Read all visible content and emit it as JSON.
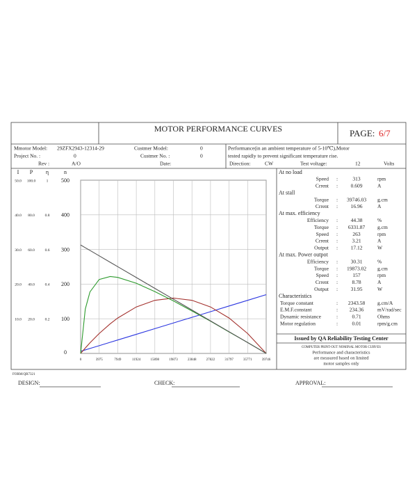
{
  "header": {
    "title": "MOTOR PERFORMANCE CURVES",
    "page_label": "PAGE:",
    "page_value": "6/7"
  },
  "info": {
    "model_label": "Mmotor Model:",
    "model": "29ZFX2943-12314-29",
    "customer_model_label": "Custmer Model:",
    "customer_model": "0",
    "project_label": "Project No. :",
    "project": "0",
    "customer_no_label": "Custmer No. :",
    "customer_no": "0",
    "rev_label": "Rev :",
    "rev": "A/O",
    "date_label": "Date:",
    "note_lines": [
      "Performance(in an ambient temperature of 5-10℃),Motor",
      "tested rapidly to prevent significant temperature rise."
    ],
    "direction_label": "Direction:",
    "direction": "CW",
    "voltage_label": "Test voltage:",
    "voltage": "12",
    "voltage_unit": "Volts"
  },
  "chart_data": {
    "type": "line",
    "x": [
      0,
      1000,
      2000,
      3975,
      6332,
      7949,
      11924,
      15898,
      19873,
      23848,
      27822,
      31797,
      35771,
      39746
    ],
    "xlim": [
      0,
      39746
    ],
    "xticks": [
      0,
      3975,
      7949,
      11924,
      15898,
      19873,
      23848,
      27822,
      31797,
      35771,
      39746
    ],
    "grid": true,
    "y_axes": [
      {
        "label": "I",
        "lim": [
          0,
          50
        ],
        "ticks": [
          {
            "value": 10,
            "label": "10.0"
          },
          {
            "value": 20,
            "label": "20.0"
          },
          {
            "value": 30,
            "label": "30.0"
          },
          {
            "value": 40,
            "label": "40.0"
          },
          {
            "value": 50,
            "label": "50.0"
          }
        ]
      },
      {
        "label": "P",
        "lim": [
          0,
          100
        ],
        "ticks": [
          {
            "value": 20,
            "label": "20.0"
          },
          {
            "value": 40,
            "label": "40.0"
          },
          {
            "value": 60,
            "label": "60.0"
          },
          {
            "value": 80,
            "label": "80.0"
          },
          {
            "value": 100,
            "label": "100.0"
          }
        ]
      },
      {
        "label": "η",
        "lim": [
          0,
          1
        ],
        "ticks": [
          0.2,
          0.4,
          0.6,
          0.8,
          1
        ]
      },
      {
        "label": "n",
        "lim": [
          0,
          500
        ],
        "ticks": [
          0,
          100,
          200,
          300,
          400,
          500
        ]
      }
    ],
    "series": [
      {
        "axis": 0,
        "color": "#2a35e0",
        "values": [
          0.61,
          1.02,
          1.43,
          2.24,
          3.21,
          3.88,
          5.51,
          7.15,
          8.79,
          10.42,
          12.05,
          13.69,
          15.32,
          16.96
        ]
      },
      {
        "axis": 1,
        "color": "#a3302c",
        "values": [
          0,
          3.13,
          6.11,
          11.5,
          17.11,
          20.44,
          26.83,
          30.66,
          31.94,
          30.66,
          26.83,
          20.44,
          11.5,
          0
        ]
      },
      {
        "axis": 2,
        "color": "#2c9a2c",
        "values": [
          0,
          0.256,
          0.355,
          0.427,
          0.444,
          0.439,
          0.405,
          0.357,
          0.303,
          0.245,
          0.186,
          0.124,
          0.063,
          0
        ]
      },
      {
        "axis": 3,
        "color": "#555555",
        "values": [
          313,
          305.1,
          297.3,
          281.7,
          263.1,
          250.4,
          219.1,
          187.8,
          156.5,
          125.2,
          93.9,
          62.6,
          31.3,
          0
        ]
      }
    ]
  },
  "table": {
    "separator": ":",
    "sections": [
      {
        "title": "At no load",
        "rows": [
          [
            "Speed",
            "313",
            "rpm"
          ],
          [
            "Crrent",
            "0.609",
            "A"
          ]
        ]
      },
      {
        "title": "At stall",
        "rows": [
          [
            "Torque",
            "39746.03",
            "g.cm"
          ],
          [
            "Crrent",
            "16.96",
            "A"
          ]
        ]
      },
      {
        "title": "At max. efficiency",
        "rows": [
          [
            "Efficiency",
            "44.38",
            "%"
          ],
          [
            "Torque",
            "6331.87",
            "g.cm"
          ],
          [
            "Speed",
            "263",
            "rpm"
          ],
          [
            "Crrent",
            "3.21",
            "A"
          ],
          [
            "Output",
            "17.12",
            "W"
          ]
        ]
      },
      {
        "title": "At max. Power outpot",
        "rows": [
          [
            "Efficiency",
            "30.31",
            "%"
          ],
          [
            "Torque",
            "19873.02",
            "g.cm"
          ],
          [
            "Speed",
            "157",
            "rpm"
          ],
          [
            "Crrent",
            "8.78",
            "A"
          ],
          [
            "Output",
            "31.95",
            "W"
          ]
        ]
      },
      {
        "title": "Characteristics",
        "rows": [
          [
            "Torque constant",
            "2343.58",
            "g.cm/A"
          ],
          [
            "E.M.F.constant",
            "234.36",
            "mV/rad/sec"
          ],
          [
            "Dynamic resistance",
            "0.71",
            "Ohms"
          ],
          [
            "Motor regulation",
            "0.01",
            "rpm/g.cm"
          ]
        ]
      }
    ]
  },
  "issued": {
    "title": "Issued by QA Reliability Testing Center",
    "lines": [
      "COMPUTER PRINT-OUT NOMINAL MOTOR CURVES",
      "Performance and characteristics",
      "are measured based on limited",
      "motor samples only"
    ]
  },
  "footer": {
    "form": "FORM:QR7321",
    "design": "DESIGN:",
    "check": "CHECK:",
    "approval": "APPROVAL:"
  }
}
